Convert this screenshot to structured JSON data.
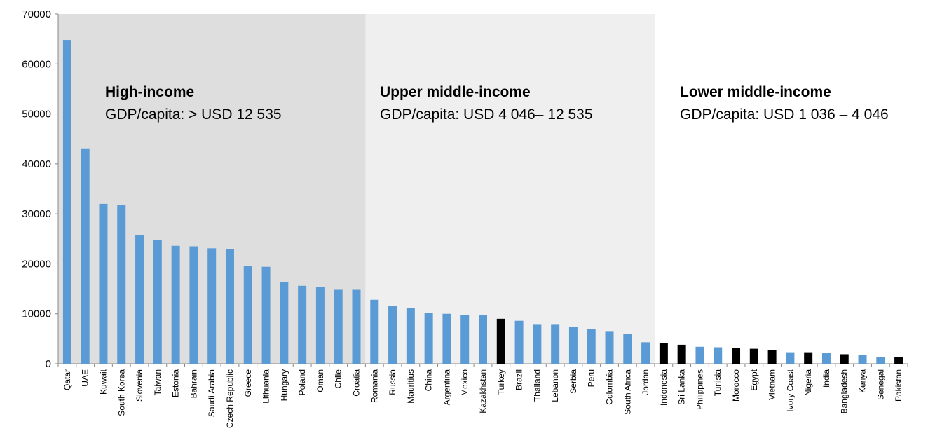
{
  "chart_data": {
    "type": "bar",
    "ylim": [
      0,
      70000
    ],
    "yticks": [
      0,
      10000,
      20000,
      30000,
      40000,
      50000,
      60000,
      70000
    ],
    "grid": false,
    "categories": [
      "Qatar",
      "UAE",
      "Kuwait",
      "South Korea",
      "Slovenia",
      "Taiwan",
      "Estonia",
      "Bahrain",
      "Saudi Arabia",
      "Czech Republic",
      "Greece",
      "Lithuania",
      "Hungary",
      "Poland",
      "Oman",
      "Chile",
      "Croatia",
      "Romania",
      "Russia",
      "Mauritius",
      "China",
      "Argentina",
      "Mexico",
      "Kazakhstan",
      "Turkey",
      "Brazil",
      "Thailand",
      "Lebanon",
      "Serbia",
      "Peru",
      "Colombia",
      "South Africa",
      "Jordan",
      "Indonesia",
      "Sri Lanka",
      "Philippines",
      "Tunisia",
      "Morocco",
      "Egypt",
      "Vietnam",
      "Ivory Coast",
      "Nigeria",
      "India",
      "Bangladesh",
      "Kenya",
      "Senegal",
      "Pakistan"
    ],
    "values": [
      64800,
      43100,
      32000,
      31700,
      25700,
      24800,
      23600,
      23500,
      23100,
      23000,
      19600,
      19400,
      16400,
      15600,
      15400,
      14800,
      14800,
      12800,
      11500,
      11100,
      10200,
      10000,
      9800,
      9700,
      9000,
      8600,
      7800,
      7800,
      7400,
      7000,
      6400,
      6000,
      4300,
      4100,
      3800,
      3400,
      3300,
      3100,
      3000,
      2700,
      2300,
      2300,
      2100,
      1900,
      1800,
      1400,
      1300
    ],
    "highlighted": [
      "Turkey",
      "Indonesia",
      "Sri Lanka",
      "Morocco",
      "Egypt",
      "Vietnam",
      "Nigeria",
      "Bangladesh",
      "Pakistan"
    ],
    "colors": {
      "bar": "#5B9BD5",
      "highlight": "#000000",
      "region_high": "#dedede",
      "region_upper": "#efefef",
      "region_lower": "#ffffff",
      "axis": "#888888"
    },
    "regions": [
      {
        "title": "High-income",
        "subtitle": "GDP/capita: > USD 12 535",
        "from": "Qatar",
        "to": "Croatia"
      },
      {
        "title": "Upper middle-income",
        "subtitle": "GDP/capita: USD 4 046– 12 535",
        "from": "Romania",
        "to": "Jordan"
      },
      {
        "title": "Lower middle-income",
        "subtitle": "GDP/capita: USD 1 036 – 4 046",
        "from": "Indonesia",
        "to": "Pakistan"
      }
    ]
  }
}
